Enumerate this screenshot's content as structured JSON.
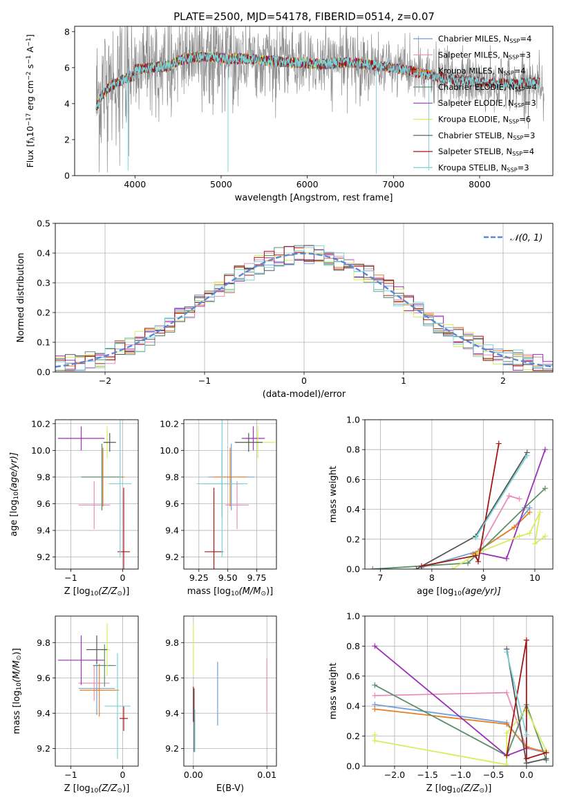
{
  "figure": {
    "title": "PLATE=2500, MJD=54178, FIBERID=0514, z=0.07"
  },
  "colors": {
    "cm": "#6f9fd8",
    "sm": "#e88dbb",
    "km": "#e67e22",
    "ce": "#5a8f6a",
    "se": "#9b2fb8",
    "ke": "#d8ec5e",
    "cs": "#555555",
    "ss": "#a31515",
    "ks": "#79d2d8",
    "grey": "#8c8c8c",
    "normal": "#5b86d4"
  },
  "chart_data": [
    {
      "id": "spectrum",
      "type": "line",
      "xlabel": "wavelength [Angstrom, rest frame]",
      "ylabel_parts": [
        "Flux [f",
        "λ",
        "10",
        "−17",
        " erg cm",
        "−2",
        " s",
        "−1",
        " A",
        "−1",
        "]"
      ],
      "xlim": [
        3300,
        8850
      ],
      "ylim": [
        0,
        8.3
      ],
      "xticks": [
        "4000",
        "5000",
        "6000",
        "7000",
        "8000"
      ],
      "yticks": [
        "0",
        "2",
        "4",
        "6",
        "8"
      ],
      "legend_position": "top-right",
      "legend": [
        {
          "base": "Chabrier MILES, N",
          "sub": "SSP",
          "tail": "=4",
          "color": "cm"
        },
        {
          "base": "Salpeter MILES, N",
          "sub": "SSP",
          "tail": "=3",
          "color": "sm"
        },
        {
          "base": "Kroupa MILES, N",
          "sub": "SSP",
          "tail": "=4",
          "color": "km"
        },
        {
          "base": "Chabrier ELODIE, N",
          "sub": "SSP",
          "tail": "=4",
          "color": "ce"
        },
        {
          "base": "Salpeter ELODIE, N",
          "sub": "SSP",
          "tail": "=3",
          "color": "se"
        },
        {
          "base": "Kroupa ELODIE, N",
          "sub": "SSP",
          "tail": "=6",
          "color": "ke"
        },
        {
          "base": "Chabrier STELIB, N",
          "sub": "SSP",
          "tail": "=3",
          "color": "cs"
        },
        {
          "base": "Salpeter STELIB, N",
          "sub": "SSP",
          "tail": "=4",
          "color": "ss"
        },
        {
          "base": "Kroupa STELIB, N",
          "sub": "SSP",
          "tail": "=3",
          "color": "ks"
        }
      ],
      "continuum": [
        [
          3550,
          4.1
        ],
        [
          3620,
          4.8
        ],
        [
          3700,
          5.2
        ],
        [
          3800,
          5.5
        ],
        [
          3900,
          5.7
        ],
        [
          4000,
          5.9
        ],
        [
          4200,
          6.0
        ],
        [
          4400,
          6.1
        ],
        [
          4500,
          6.4
        ],
        [
          4700,
          6.6
        ],
        [
          4900,
          6.6
        ],
        [
          5100,
          6.5
        ],
        [
          5300,
          6.5
        ],
        [
          5500,
          6.4
        ],
        [
          5800,
          6.3
        ],
        [
          6000,
          6.25
        ],
        [
          6200,
          6.2
        ],
        [
          6500,
          6.3
        ],
        [
          6800,
          6.1
        ],
        [
          7000,
          6.0
        ],
        [
          7200,
          5.8
        ],
        [
          7400,
          5.6
        ],
        [
          7600,
          5.4
        ],
        [
          7800,
          5.3
        ],
        [
          8000,
          5.2
        ],
        [
          8200,
          5.1
        ],
        [
          8400,
          5.1
        ],
        [
          8600,
          5.2
        ]
      ],
      "model_range": {
        "miles": [
          3550,
          7420
        ],
        "elodie": [
          3550,
          6800
        ],
        "stelib": [
          3550,
          8700
        ]
      },
      "noise_dips": [
        [
          3920,
          0.3
        ],
        [
          5080,
          0.2
        ],
        [
          6800,
          0.1
        ],
        [
          7410,
          0.3
        ]
      ]
    },
    {
      "id": "residuals",
      "type": "histogram",
      "xlabel": "(data-model)/error",
      "ylabel": "Normed distribution",
      "xlim": [
        -2.5,
        2.5
      ],
      "ylim": [
        0,
        0.5
      ],
      "xticks": [
        "−2",
        "−1",
        "0",
        "1",
        "2"
      ],
      "yticks": [
        "0.0",
        "0.1",
        "0.2",
        "0.3",
        "0.4",
        "0.5"
      ],
      "grid": true,
      "bin_width": 0.1,
      "legend_position": "top-right",
      "normal_label": "𝒩(0, 1)"
    },
    {
      "id": "age-vs-Z",
      "type": "scatter",
      "xlabel_parts": [
        "Z [log",
        "10",
        "(Z/Z",
        "⊙",
        ")]"
      ],
      "ylabel_parts": [
        "age  [log",
        "10",
        "(age/yr)]"
      ],
      "xlim": [
        -1.3,
        0.3
      ],
      "ylim": [
        9.11,
        10.23
      ],
      "xticks": [
        -1,
        0
      ],
      "xtick_labels": [
        "−1",
        "0"
      ],
      "yticks": [
        9.2,
        9.4,
        9.6,
        9.8,
        10.0,
        10.2
      ],
      "ytick_labels": [
        "9.2",
        "9.4",
        "9.6",
        "9.8",
        "10.0",
        "10.2"
      ],
      "points": [
        {
          "c": "cm",
          "x": -0.4,
          "y": 9.8,
          "xe": 0.35,
          "ye": 0.25
        },
        {
          "c": "sm",
          "x": -0.55,
          "y": 9.59,
          "xe": 0.3,
          "ye": 0.18
        },
        {
          "c": "km",
          "x": -0.38,
          "y": 9.8,
          "xe": 0.42,
          "ye": 0.22
        },
        {
          "c": "ce",
          "x": -0.4,
          "y": 9.8,
          "xe": 0.4,
          "ye": 0.25
        },
        {
          "c": "se",
          "x": -0.8,
          "y": 10.09,
          "xe": 0.45,
          "ye": 0.09
        },
        {
          "c": "ke",
          "x": -0.3,
          "y": 10.06,
          "xe": 0.05,
          "ye": 0.12
        },
        {
          "c": "cs",
          "x": -0.25,
          "y": 10.06,
          "xe": 0.12,
          "ye": 0.07
        },
        {
          "c": "ss",
          "x": 0.02,
          "y": 9.24,
          "xe": 0.12,
          "ye": 0.48
        },
        {
          "c": "ks",
          "x": -0.05,
          "y": 9.75,
          "xe": 0.22,
          "ye": 0.55
        }
      ]
    },
    {
      "id": "age-vs-mass",
      "type": "scatter",
      "xlabel_parts": [
        "mass [log",
        "10",
        "(M/M",
        "⊙",
        ")]"
      ],
      "ylabel_parts": [],
      "xlim": [
        9.12,
        9.92
      ],
      "ylim": [
        9.11,
        10.23
      ],
      "xticks": [
        9.25,
        9.5,
        9.75
      ],
      "xtick_labels": [
        "9.25",
        "9.50",
        "9.75"
      ],
      "yticks": [
        9.2,
        9.4,
        9.6,
        9.8,
        10.0,
        10.2
      ],
      "ytick_labels": [
        "9.2",
        "9.4",
        "9.6",
        "9.8",
        "10.0",
        "10.2"
      ],
      "points": [
        {
          "c": "cm",
          "x": 9.53,
          "y": 9.8,
          "xe": 0.2,
          "ye": 0.25
        },
        {
          "c": "sm",
          "x": 9.58,
          "y": 9.59,
          "xe": 0.1,
          "ye": 0.18
        },
        {
          "c": "km",
          "x": 9.52,
          "y": 9.8,
          "xe": 0.15,
          "ye": 0.22
        },
        {
          "c": "ce",
          "x": 9.45,
          "y": 9.75,
          "xe": 0.18,
          "ye": 0.25
        },
        {
          "c": "se",
          "x": 9.72,
          "y": 10.09,
          "xe": 0.1,
          "ye": 0.09
        },
        {
          "c": "ke",
          "x": 9.76,
          "y": 10.06,
          "xe": 0.15,
          "ye": 0.12
        },
        {
          "c": "cs",
          "x": 9.68,
          "y": 10.06,
          "xe": 0.12,
          "ye": 0.07
        },
        {
          "c": "ss",
          "x": 9.38,
          "y": 9.24,
          "xe": 0.08,
          "ye": 0.48
        },
        {
          "c": "ks",
          "x": 9.45,
          "y": 9.75,
          "xe": 0.22,
          "ye": 0.55
        }
      ]
    },
    {
      "id": "weight-vs-age",
      "type": "line",
      "xlabel_parts": [
        "age  [log",
        "10",
        "(age/yr)]"
      ],
      "ylabel": "mass weight",
      "xlim": [
        6.7,
        10.35
      ],
      "ylim": [
        0,
        1.0
      ],
      "xticks": [
        7,
        8,
        9,
        10
      ],
      "xtick_labels": [
        "7",
        "8",
        "9",
        "10"
      ],
      "yticks": [
        0,
        0.2,
        0.4,
        0.6,
        0.8,
        1.0
      ],
      "ytick_labels": [
        "0.0",
        "0.2",
        "0.4",
        "0.6",
        "0.8",
        "1.0"
      ],
      "series": [
        {
          "c": "cm",
          "pts": [
            [
              7.8,
              0.01
            ],
            [
              8.9,
              0.12
            ],
            [
              9.6,
              0.28
            ],
            [
              9.9,
              0.41
            ]
          ]
        },
        {
          "c": "sm",
          "pts": [
            [
              8.9,
              0.12
            ],
            [
              9.5,
              0.49
            ],
            [
              9.7,
              0.47
            ]
          ]
        },
        {
          "c": "km",
          "pts": [
            [
              8.8,
              0.1
            ],
            [
              9.6,
              0.28
            ],
            [
              9.9,
              0.38
            ]
          ]
        },
        {
          "c": "ce",
          "pts": [
            [
              6.85,
              0.0
            ],
            [
              8.7,
              0.04
            ],
            [
              9.8,
              0.41
            ],
            [
              10.2,
              0.54
            ]
          ]
        },
        {
          "c": "se",
          "pts": [
            [
              8.9,
              0.11
            ],
            [
              9.45,
              0.07
            ],
            [
              10.2,
              0.8
            ]
          ]
        },
        {
          "c": "ke",
          "pts": [
            [
              8.4,
              0.0
            ],
            [
              8.9,
              0.11
            ],
            [
              9.7,
              0.22
            ],
            [
              9.9,
              0.24
            ],
            [
              10.1,
              0.38
            ],
            [
              10.0,
              0.17
            ],
            [
              10.2,
              0.22
            ]
          ]
        },
        {
          "c": "cs",
          "pts": [
            [
              7.7,
              0.0
            ],
            [
              8.85,
              0.22
            ],
            [
              9.85,
              0.78
            ]
          ]
        },
        {
          "c": "ss",
          "pts": [
            [
              7.8,
              0.02
            ],
            [
              8.85,
              0.09
            ],
            [
              8.9,
              0.05
            ],
            [
              9.3,
              0.84
            ]
          ]
        },
        {
          "c": "ks",
          "pts": [
            [
              8.85,
              0.21
            ],
            [
              9.85,
              0.76
            ]
          ]
        }
      ]
    },
    {
      "id": "mass-vs-Z",
      "type": "scatter",
      "xlabel_parts": [
        "Z [log",
        "10",
        "(Z/Z",
        "⊙",
        ")]"
      ],
      "ylabel_parts": [
        "mass [log",
        "10",
        "(M/M",
        "⊙",
        ")]"
      ],
      "xlim": [
        -1.3,
        0.3
      ],
      "ylim": [
        9.1,
        9.95
      ],
      "xticks": [
        -1,
        0
      ],
      "xtick_labels": [
        "−1",
        "0"
      ],
      "yticks": [
        9.2,
        9.4,
        9.6,
        9.8
      ],
      "ytick_labels": [
        "9.2",
        "9.4",
        "9.6",
        "9.8"
      ],
      "points": [
        {
          "c": "cm",
          "x": -0.5,
          "y": 9.54,
          "xe": 0.35,
          "ye": 0.15
        },
        {
          "c": "sm",
          "x": -0.55,
          "y": 9.57,
          "xe": 0.3,
          "ye": 0.1
        },
        {
          "c": "km",
          "x": -0.45,
          "y": 9.53,
          "xe": 0.38,
          "ye": 0.15
        },
        {
          "c": "ce",
          "x": -0.35,
          "y": 9.67,
          "xe": 0.22,
          "ye": 0.12
        },
        {
          "c": "se",
          "x": -0.8,
          "y": 9.7,
          "xe": 0.45,
          "ye": 0.14
        },
        {
          "c": "ke",
          "x": -0.3,
          "y": 9.76,
          "xe": 0.05,
          "ye": 0.15
        },
        {
          "c": "cs",
          "x": -0.5,
          "y": 9.76,
          "xe": 0.2,
          "ye": 0.08
        },
        {
          "c": "ss",
          "x": 0.02,
          "y": 9.37,
          "xe": 0.08,
          "ye": 0.07
        },
        {
          "c": "ks",
          "x": -0.1,
          "y": 9.44,
          "xe": 0.25,
          "ye": 0.3
        }
      ]
    },
    {
      "id": "mass-vs-EBV",
      "type": "scatter",
      "xlabel": "E(B-V)",
      "xlim": [
        -0.0013,
        0.0113
      ],
      "ylim": [
        9.1,
        9.95
      ],
      "xticks": [
        0.0,
        0.01
      ],
      "xtick_labels": [
        "0.00",
        "0.01"
      ],
      "yticks": [
        9.2,
        9.4,
        9.6,
        9.8
      ],
      "ytick_labels": [
        "9.2",
        "9.4",
        "9.6",
        "9.8"
      ],
      "points": [
        {
          "c": "ke",
          "x": 0.0,
          "y": 9.76,
          "xe": 0.0,
          "ye": 0.15
        },
        {
          "c": "ss",
          "x": 0.0,
          "y": 9.45,
          "xe": 0.0,
          "ye": 0.1
        },
        {
          "c": "cs",
          "x": 0.0001,
          "y": 9.36,
          "xe": 0.0,
          "ye": 0.18
        },
        {
          "c": "ks",
          "x": 0.0002,
          "y": 9.3,
          "xe": 0.0,
          "ye": 0.12
        },
        {
          "c": "cm",
          "x": 0.0033,
          "y": 9.51,
          "xe": 0.0,
          "ye": 0.18
        },
        {
          "c": "sm",
          "x": 0.01,
          "y": 9.56,
          "xe": 0.0,
          "ye": 0.15
        }
      ]
    },
    {
      "id": "weight-vs-Z",
      "type": "line",
      "xlabel_parts": [
        "Z [log",
        "10",
        "(Z/Z",
        "⊙",
        ")]"
      ],
      "ylabel": "mass weight",
      "xlim": [
        -2.45,
        0.4
      ],
      "ylim": [
        0,
        1.0
      ],
      "xticks": [
        -2.0,
        -1.5,
        -1.0,
        -0.5,
        0.0
      ],
      "xtick_labels": [
        "−2.0",
        "−1.5",
        "−1.0",
        "−0.5",
        "0.0"
      ],
      "yticks": [
        0,
        0.2,
        0.4,
        0.6,
        0.8,
        1.0
      ],
      "ytick_labels": [
        "0.0",
        "0.2",
        "0.4",
        "0.6",
        "0.8",
        "1.0"
      ],
      "series": [
        {
          "c": "cm",
          "pts": [
            [
              -2.3,
              0.41
            ],
            [
              -0.3,
              0.29
            ],
            [
              0.0,
              0.12
            ],
            [
              0.3,
              0.09
            ]
          ]
        },
        {
          "c": "sm",
          "pts": [
            [
              -2.3,
              0.47
            ],
            [
              -0.3,
              0.49
            ],
            [
              0.0,
              0.12
            ],
            [
              0.3,
              0.1
            ]
          ]
        },
        {
          "c": "km",
          "pts": [
            [
              -2.3,
              0.38
            ],
            [
              -0.3,
              0.28
            ],
            [
              0.0,
              0.13
            ],
            [
              0.3,
              0.09
            ]
          ]
        },
        {
          "c": "ce",
          "pts": [
            [
              -2.3,
              0.54
            ],
            [
              -0.3,
              0.07
            ],
            [
              0.0,
              0.41
            ],
            [
              0.3,
              0.04
            ]
          ]
        },
        {
          "c": "se",
          "pts": [
            [
              -2.3,
              0.8
            ],
            [
              -0.3,
              0.07
            ],
            [
              0.0,
              0.12
            ]
          ]
        },
        {
          "c": "ke",
          "pts": [
            [
              -2.3,
              0.21
            ],
            [
              -2.3,
              0.17
            ],
            [
              -0.3,
              0.01
            ],
            [
              -0.3,
              0.22
            ],
            [
              0.0,
              0.38
            ],
            [
              0.3,
              0.1
            ]
          ]
        },
        {
          "c": "cs",
          "pts": [
            [
              -0.3,
              0.78
            ],
            [
              0.0,
              0.02
            ],
            [
              0.3,
              0.05
            ]
          ]
        },
        {
          "c": "ss",
          "pts": [
            [
              -0.3,
              0.07
            ],
            [
              0.0,
              0.84
            ],
            [
              0.0,
              0.05
            ],
            [
              0.3,
              0.09
            ]
          ]
        },
        {
          "c": "ks",
          "pts": [
            [
              -0.3,
              0.76
            ],
            [
              0.0,
              0.21
            ]
          ]
        }
      ]
    }
  ]
}
